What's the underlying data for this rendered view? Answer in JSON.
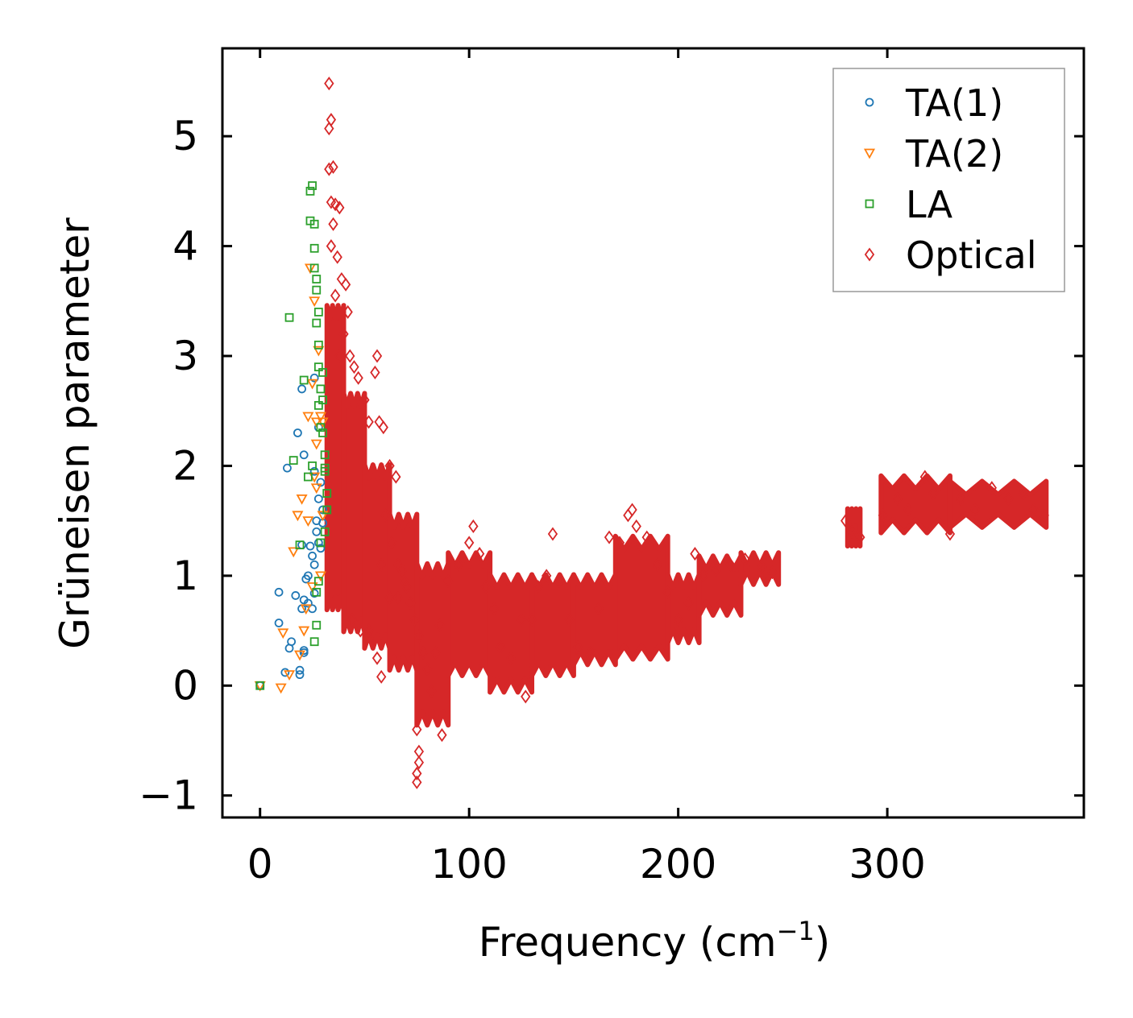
{
  "chart_data": {
    "type": "scatter",
    "xlabel": "Frequency (cm",
    "xlabel_sup": "−1",
    "xlabel_close": ")",
    "ylabel": "Grüneisen parameter",
    "xlim": [
      -18,
      394
    ],
    "ylim": [
      -1.2,
      5.8
    ],
    "xticks": [
      0,
      100,
      200,
      300
    ],
    "xtick_labels": [
      "0",
      "100",
      "200",
      "300"
    ],
    "yticks": [
      -1,
      0,
      1,
      2,
      3,
      4,
      5
    ],
    "ytick_labels": [
      "−1",
      "0",
      "1",
      "2",
      "3",
      "4",
      "5"
    ],
    "legend_position": "top-right",
    "series": [
      {
        "name": "TA(1)",
        "marker": "circle",
        "color": "#1f77b4",
        "points": [
          [
            0,
            0
          ],
          [
            9,
            0.85
          ],
          [
            9,
            0.57
          ],
          [
            12,
            0.12
          ],
          [
            13,
            1.98
          ],
          [
            14,
            0.34
          ],
          [
            15,
            0.4
          ],
          [
            17,
            0.82
          ],
          [
            18,
            2.3
          ],
          [
            19,
            0.1
          ],
          [
            19,
            0.14
          ],
          [
            20,
            2.7
          ],
          [
            20,
            0.7
          ],
          [
            20,
            1.28
          ],
          [
            21,
            0.3
          ],
          [
            21,
            2.1
          ],
          [
            21,
            0.78
          ],
          [
            21,
            0.32
          ],
          [
            22,
            0.97
          ],
          [
            23,
            1.0
          ],
          [
            23,
            0.75
          ],
          [
            24,
            1.27
          ],
          [
            25,
            0.7
          ],
          [
            25,
            1.18
          ],
          [
            26,
            0.84
          ],
          [
            26,
            1.1
          ],
          [
            26,
            2.8
          ],
          [
            26,
            1.95
          ],
          [
            27,
            1.4
          ],
          [
            27,
            1.5
          ],
          [
            28,
            1.3
          ],
          [
            28,
            1.7
          ],
          [
            28,
            2.35
          ],
          [
            29,
            1.25
          ],
          [
            29,
            1.85
          ],
          [
            30,
            1.6
          ],
          [
            30,
            1.48
          ]
        ]
      },
      {
        "name": "TA(2)",
        "marker": "triangle-down",
        "color": "#ff7f0e",
        "points": [
          [
            0,
            0
          ],
          [
            10,
            -0.02
          ],
          [
            11,
            0.48
          ],
          [
            14,
            0.1
          ],
          [
            16,
            1.22
          ],
          [
            18,
            1.55
          ],
          [
            19,
            0.28
          ],
          [
            20,
            1.7
          ],
          [
            21,
            0.5
          ],
          [
            22,
            0.7
          ],
          [
            23,
            1.5
          ],
          [
            23,
            2.45
          ],
          [
            24,
            3.8
          ],
          [
            25,
            0.9
          ],
          [
            25,
            2.75
          ],
          [
            26,
            3.5
          ],
          [
            26,
            1.9
          ],
          [
            27,
            2.2
          ],
          [
            27,
            2.4
          ],
          [
            27,
            1.8
          ],
          [
            28,
            3.05
          ],
          [
            29,
            2.45
          ],
          [
            29,
            1.0
          ],
          [
            30,
            2.4
          ],
          [
            30,
            1.55
          ]
        ]
      },
      {
        "name": "LA",
        "marker": "square",
        "color": "#2ca02c",
        "points": [
          [
            0,
            0
          ],
          [
            14,
            3.35
          ],
          [
            16,
            2.05
          ],
          [
            19,
            1.28
          ],
          [
            21,
            2.78
          ],
          [
            23,
            1.9
          ],
          [
            24,
            4.23
          ],
          [
            24,
            4.5
          ],
          [
            25,
            4.55
          ],
          [
            25,
            2.0
          ],
          [
            26,
            3.98
          ],
          [
            26,
            4.2
          ],
          [
            26,
            3.8
          ],
          [
            26,
            0.4
          ],
          [
            27,
            3.7
          ],
          [
            27,
            3.6
          ],
          [
            27,
            3.3
          ],
          [
            27,
            0.85
          ],
          [
            27,
            0.55
          ],
          [
            28,
            3.4
          ],
          [
            28,
            3.1
          ],
          [
            28,
            2.9
          ],
          [
            28,
            2.55
          ],
          [
            28,
            0.95
          ],
          [
            29,
            2.7
          ],
          [
            29,
            2.35
          ],
          [
            29,
            1.3
          ],
          [
            30,
            2.85
          ],
          [
            30,
            2.6
          ],
          [
            30,
            2.3
          ],
          [
            31,
            2.1
          ],
          [
            31,
            1.98
          ],
          [
            31,
            1.95
          ],
          [
            31,
            1.4
          ],
          [
            32,
            1.75
          ],
          [
            32,
            1.6
          ]
        ]
      },
      {
        "name": "Optical",
        "marker": "diamond",
        "color": "#d62728",
        "points": [
          [
            33,
            5.48
          ],
          [
            34,
            5.15
          ],
          [
            33,
            5.07
          ],
          [
            33,
            4.7
          ],
          [
            34,
            4.4
          ],
          [
            35,
            4.72
          ],
          [
            36,
            4.38
          ],
          [
            38,
            4.35
          ],
          [
            34,
            4.0
          ],
          [
            35,
            4.2
          ],
          [
            37,
            3.9
          ],
          [
            39,
            3.7
          ],
          [
            41,
            3.65
          ],
          [
            42,
            3.4
          ],
          [
            40,
            3.2
          ],
          [
            36,
            3.55
          ],
          [
            38,
            3.0
          ],
          [
            43,
            3.0
          ],
          [
            45,
            2.9
          ],
          [
            47,
            2.8
          ],
          [
            50,
            2.6
          ],
          [
            52,
            2.4
          ],
          [
            55,
            2.85
          ],
          [
            56,
            3.0
          ],
          [
            57,
            2.4
          ],
          [
            59,
            2.35
          ],
          [
            62,
            2.0
          ],
          [
            65,
            1.9
          ],
          [
            60,
            1.55
          ],
          [
            63,
            1.3
          ],
          [
            58,
            1.1
          ],
          [
            66,
            1.1
          ],
          [
            68,
            1.05
          ],
          [
            70,
            0.9
          ],
          [
            72,
            0.75
          ],
          [
            74,
            0.6
          ],
          [
            76,
            0.45
          ],
          [
            78,
            0.3
          ],
          [
            80,
            0.15
          ],
          [
            82,
            -0.05
          ],
          [
            84,
            0.3
          ],
          [
            86,
            0.55
          ],
          [
            75,
            -0.4
          ],
          [
            76,
            -0.6
          ],
          [
            76,
            -0.7
          ],
          [
            75,
            -0.8
          ],
          [
            75,
            -0.88
          ],
          [
            87,
            -0.45
          ],
          [
            90,
            0.95
          ],
          [
            95,
            1.1
          ],
          [
            100,
            1.3
          ],
          [
            102,
            1.45
          ],
          [
            105,
            1.2
          ],
          [
            108,
            0.9
          ],
          [
            112,
            0.7
          ],
          [
            115,
            0.35
          ],
          [
            120,
            0.25
          ],
          [
            125,
            0.6
          ],
          [
            127,
            -0.1
          ],
          [
            130,
            0.6
          ],
          [
            133,
            0.9
          ],
          [
            137,
            1.0
          ],
          [
            140,
            1.38
          ],
          [
            143,
            0.95
          ],
          [
            148,
            0.6
          ],
          [
            152,
            0.35
          ],
          [
            158,
            0.3
          ],
          [
            162,
            0.7
          ],
          [
            167,
            1.35
          ],
          [
            172,
            1.3
          ],
          [
            176,
            1.55
          ],
          [
            178,
            1.6
          ],
          [
            180,
            1.45
          ],
          [
            185,
            1.35
          ],
          [
            190,
            1.1
          ],
          [
            195,
            0.85
          ],
          [
            200,
            0.6
          ],
          [
            205,
            0.75
          ],
          [
            208,
            1.2
          ],
          [
            212,
            1.0
          ],
          [
            218,
            1.05
          ],
          [
            225,
            1.1
          ],
          [
            232,
            1.15
          ],
          [
            240,
            1.08
          ],
          [
            245,
            1.03
          ],
          [
            280,
            1.5
          ],
          [
            283,
            1.4
          ],
          [
            287,
            1.35
          ],
          [
            298,
            1.55
          ],
          [
            305,
            1.7
          ],
          [
            310,
            1.6
          ],
          [
            318,
            1.9
          ],
          [
            322,
            1.75
          ],
          [
            330,
            1.38
          ],
          [
            335,
            1.7
          ],
          [
            342,
            1.6
          ],
          [
            350,
            1.8
          ],
          [
            358,
            1.7
          ],
          [
            365,
            1.75
          ],
          [
            370,
            1.6
          ],
          [
            375,
            1.55
          ],
          [
            44,
            0.6
          ],
          [
            48,
            0.5
          ],
          [
            52,
            0.5
          ],
          [
            56,
            0.25
          ],
          [
            58,
            0.08
          ],
          [
            62,
            0.8
          ],
          [
            66,
            0.8
          ],
          [
            69,
            0.95
          ]
        ]
      }
    ],
    "optical_bands": [
      {
        "x0": 32,
        "x1": 40,
        "lo": 0.75,
        "hi": 3.4
      },
      {
        "x0": 40,
        "x1": 50,
        "lo": 0.55,
        "hi": 2.6
      },
      {
        "x0": 50,
        "x1": 62,
        "lo": 0.4,
        "hi": 1.95
      },
      {
        "x0": 62,
        "x1": 75,
        "lo": 0.2,
        "hi": 1.5
      },
      {
        "x0": 75,
        "x1": 90,
        "lo": -0.3,
        "hi": 1.05
      },
      {
        "x0": 90,
        "x1": 110,
        "lo": 0.15,
        "hi": 1.15
      },
      {
        "x0": 110,
        "x1": 130,
        "lo": 0.0,
        "hi": 0.95
      },
      {
        "x0": 130,
        "x1": 150,
        "lo": 0.15,
        "hi": 0.95
      },
      {
        "x0": 150,
        "x1": 170,
        "lo": 0.25,
        "hi": 0.95
      },
      {
        "x0": 170,
        "x1": 195,
        "lo": 0.3,
        "hi": 1.3
      },
      {
        "x0": 195,
        "x1": 210,
        "lo": 0.45,
        "hi": 0.95
      },
      {
        "x0": 210,
        "x1": 230,
        "lo": 0.7,
        "hi": 1.12
      },
      {
        "x0": 230,
        "x1": 248,
        "lo": 0.98,
        "hi": 1.15
      },
      {
        "x0": 281,
        "x1": 287,
        "lo": 1.33,
        "hi": 1.55
      },
      {
        "x0": 297,
        "x1": 330,
        "lo": 1.45,
        "hi": 1.85
      },
      {
        "x0": 330,
        "x1": 376,
        "lo": 1.5,
        "hi": 1.8
      }
    ]
  }
}
